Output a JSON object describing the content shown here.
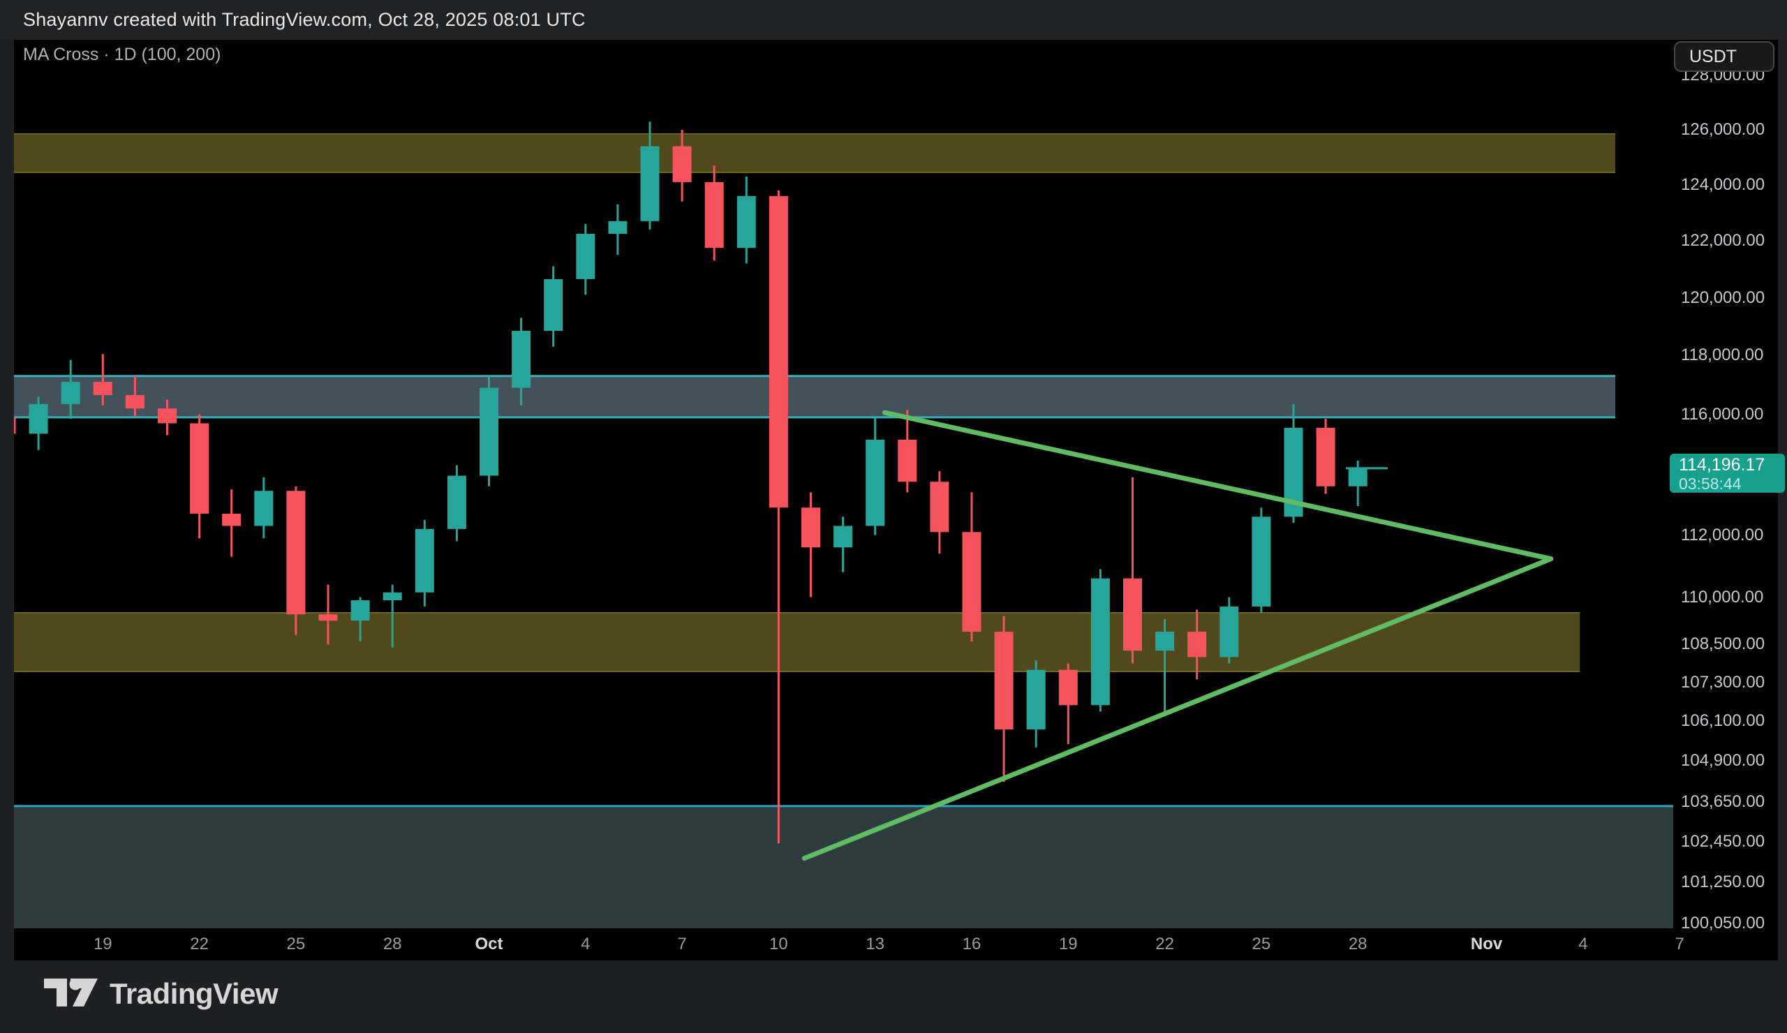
{
  "header": {
    "attribution": "Shayannv created with TradingView.com, Oct 28, 2025 08:01 UTC"
  },
  "chart_header": {
    "indicator_label": "MA Cross · 1D (100, 200)",
    "currency_button": "USDT"
  },
  "price_badge": {
    "price_label": "114,196.17",
    "countdown": "03:58:44"
  },
  "footer": {
    "brand": "TradingView"
  },
  "price_axis": {
    "ticks": [
      {
        "price": 128000,
        "label": "128,000.00"
      },
      {
        "price": 126000,
        "label": "126,000.00"
      },
      {
        "price": 124000,
        "label": "124,000.00"
      },
      {
        "price": 122000,
        "label": "122,000.00"
      },
      {
        "price": 120000,
        "label": "120,000.00"
      },
      {
        "price": 118000,
        "label": "118,000.00"
      },
      {
        "price": 116000,
        "label": "116,000.00"
      },
      {
        "price": 112000,
        "label": "112,000.00"
      },
      {
        "price": 110000,
        "label": "110,000.00"
      },
      {
        "price": 108500,
        "label": "108,500.00"
      },
      {
        "price": 107300,
        "label": "107,300.00"
      },
      {
        "price": 106100,
        "label": "106,100.00"
      },
      {
        "price": 104900,
        "label": "104,900.00"
      },
      {
        "price": 103650,
        "label": "103,650.00"
      },
      {
        "price": 102450,
        "label": "102,450.00"
      },
      {
        "price": 101250,
        "label": "101,250.00"
      },
      {
        "price": 100050,
        "label": "100,050.00"
      }
    ]
  },
  "time_axis": {
    "ticks": [
      {
        "label": "19",
        "day": 3,
        "bold": false
      },
      {
        "label": "22",
        "day": 6,
        "bold": false
      },
      {
        "label": "25",
        "day": 9,
        "bold": false
      },
      {
        "label": "28",
        "day": 12,
        "bold": false
      },
      {
        "label": "Oct",
        "day": 15,
        "bold": true
      },
      {
        "label": "4",
        "day": 18,
        "bold": false
      },
      {
        "label": "7",
        "day": 21,
        "bold": false
      },
      {
        "label": "10",
        "day": 24,
        "bold": false
      },
      {
        "label": "13",
        "day": 27,
        "bold": false
      },
      {
        "label": "16",
        "day": 30,
        "bold": false
      },
      {
        "label": "19",
        "day": 33,
        "bold": false
      },
      {
        "label": "22",
        "day": 36,
        "bold": false
      },
      {
        "label": "25",
        "day": 39,
        "bold": false
      },
      {
        "label": "28",
        "day": 42,
        "bold": false
      },
      {
        "label": "Nov",
        "day": 46,
        "bold": true
      },
      {
        "label": "4",
        "day": 49,
        "bold": false
      },
      {
        "label": "7",
        "day": 52,
        "bold": false
      }
    ]
  },
  "colors": {
    "background": "#000000",
    "frame_background": "#1f2023",
    "topbar_background": "#212224",
    "up": "#26a69a",
    "down": "#f5545e",
    "badge": "#17a08b",
    "trendline": "#5fbc63",
    "zone_olive_fill": "#50491c",
    "zone_olive_border": "#6e661c",
    "zone_teal_fill": "#43525a",
    "zone_teal_border": "#35b0bd",
    "zone_demand_fill": "#2e3c40",
    "zone_demand_border": "#2aa4bd",
    "axis_text": "#c6c8cc"
  },
  "chart_data": {
    "type": "candlestick",
    "interval": "1D",
    "indicator": "MA Cross (100, 200)",
    "quote_currency": "USDT",
    "price_scale": "logarithmic",
    "ylim": [
      99900,
      128400
    ],
    "current_price": 114196.17,
    "bar_close_countdown": "03:58:44",
    "candles_format": [
      "date",
      "open",
      "high",
      "low",
      "close"
    ],
    "candles": [
      [
        "Sep 16",
        115900,
        116100,
        114750,
        115350
      ],
      [
        "Sep 17",
        115350,
        116600,
        114800,
        116350
      ],
      [
        "Sep 18",
        116350,
        117850,
        115850,
        117100
      ],
      [
        "Sep 19",
        117100,
        118050,
        116300,
        116650
      ],
      [
        "Sep 20",
        116650,
        117300,
        115950,
        116200
      ],
      [
        "Sep 21",
        116200,
        116500,
        115300,
        115700
      ],
      [
        "Sep 22",
        115700,
        116000,
        111900,
        112700
      ],
      [
        "Sep 23",
        112700,
        113500,
        111300,
        112300
      ],
      [
        "Sep 24",
        112300,
        113900,
        111900,
        113450
      ],
      [
        "Sep 25",
        113450,
        113600,
        108800,
        109450
      ],
      [
        "Sep 26",
        109450,
        110400,
        108500,
        109250
      ],
      [
        "Sep 27",
        109250,
        110000,
        108600,
        109900
      ],
      [
        "Sep 28",
        109900,
        110400,
        108400,
        110150
      ],
      [
        "Sep 29",
        110150,
        112500,
        109700,
        112200
      ],
      [
        "Sep 30",
        112200,
        114300,
        111800,
        113950
      ],
      [
        "Oct 1",
        113950,
        117300,
        113600,
        116900
      ],
      [
        "Oct 2",
        116900,
        119300,
        116300,
        118850
      ],
      [
        "Oct 3",
        118850,
        121100,
        118300,
        120650
      ],
      [
        "Oct 4",
        120650,
        122600,
        120100,
        122250
      ],
      [
        "Oct 5",
        122250,
        123300,
        121500,
        122700
      ],
      [
        "Oct 6",
        122700,
        126300,
        122400,
        125400
      ],
      [
        "Oct 7",
        125400,
        126000,
        123400,
        124100
      ],
      [
        "Oct 8",
        124100,
        124700,
        121300,
        121750
      ],
      [
        "Oct 9",
        121750,
        124300,
        121200,
        123600
      ],
      [
        "Oct 10",
        123600,
        123800,
        102400,
        112900
      ],
      [
        "Oct 11",
        112900,
        113400,
        110000,
        111600
      ],
      [
        "Oct 12",
        111600,
        112600,
        110800,
        112300
      ],
      [
        "Oct 13",
        112300,
        115900,
        112000,
        115150
      ],
      [
        "Oct 14",
        115150,
        116150,
        113400,
        113750
      ],
      [
        "Oct 15",
        113750,
        114100,
        111400,
        112100
      ],
      [
        "Oct 16",
        112100,
        113400,
        108600,
        108900
      ],
      [
        "Oct 17",
        108900,
        109400,
        104250,
        105850
      ],
      [
        "Oct 18",
        105850,
        108000,
        105300,
        107700
      ],
      [
        "Oct 19",
        107700,
        107900,
        105400,
        106600
      ],
      [
        "Oct 20",
        106600,
        110900,
        106400,
        110600
      ],
      [
        "Oct 21",
        110600,
        113900,
        107900,
        108300
      ],
      [
        "Oct 22",
        108300,
        109300,
        106300,
        108900
      ],
      [
        "Oct 23",
        108900,
        109600,
        107400,
        108100
      ],
      [
        "Oct 24",
        108100,
        110000,
        107900,
        109700
      ],
      [
        "Oct 25",
        109700,
        112900,
        109500,
        112600
      ],
      [
        "Oct 26",
        112600,
        116350,
        112400,
        115550
      ],
      [
        "Oct 27",
        115550,
        115850,
        113350,
        113600
      ],
      [
        "Oct 28",
        113600,
        114450,
        112950,
        114196.17
      ]
    ],
    "zones": [
      {
        "name": "resistance-band-upper",
        "style": "olive",
        "price_top": 125850,
        "price_bottom": 124450,
        "day_start": 0.2,
        "day_end": 50.0
      },
      {
        "name": "supply-band-116k",
        "style": "teal",
        "price_top": 117300,
        "price_bottom": 115900,
        "day_start": 0.2,
        "day_end": 50.0
      },
      {
        "name": "support-band-108k",
        "style": "olive",
        "price_top": 109500,
        "price_bottom": 107650,
        "day_start": 0.2,
        "day_end": 48.9
      },
      {
        "name": "demand-zone-102k",
        "style": "demand",
        "price_top": 103520,
        "price_bottom": 99900,
        "day_start": 0.2,
        "day_end": 51.9,
        "border_bottom": false
      }
    ],
    "trendlines": [
      {
        "name": "triangle-upper",
        "points": [
          [
            27.3,
            116060
          ],
          [
            48.0,
            111230
          ]
        ]
      },
      {
        "name": "triangle-lower",
        "points": [
          [
            24.8,
            101960
          ],
          [
            48.0,
            111230
          ]
        ]
      }
    ]
  }
}
